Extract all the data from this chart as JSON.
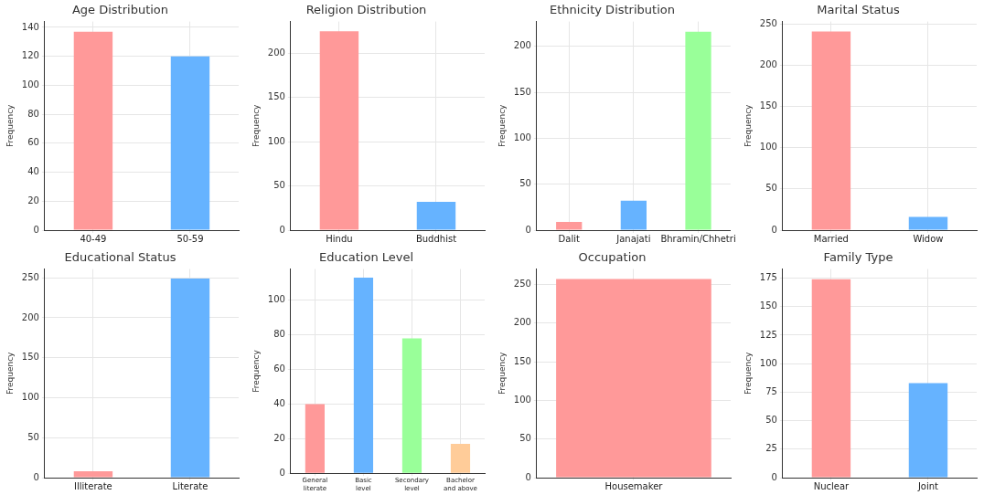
{
  "chart_data": [
    {
      "type": "bar",
      "title": "Age Distribution",
      "ylabel": "Frequency",
      "categories": [
        "40-49",
        "50-59"
      ],
      "values": [
        137,
        120
      ],
      "colors": [
        "#ff9999",
        "#66b3ff"
      ],
      "ylim": [
        0,
        144
      ],
      "yticks": [
        0,
        20,
        40,
        60,
        80,
        100,
        120,
        140
      ],
      "grid": true
    },
    {
      "type": "bar",
      "title": "Religion Distribution",
      "ylabel": "Frequency",
      "categories": [
        "Hindu",
        "Buddhist"
      ],
      "values": [
        225,
        32
      ],
      "colors": [
        "#ff9999",
        "#66b3ff"
      ],
      "ylim": [
        0,
        236
      ],
      "yticks": [
        0,
        50,
        100,
        150,
        200
      ],
      "grid": true
    },
    {
      "type": "bar",
      "title": "Ethnicity Distribution",
      "ylabel": "Frequency",
      "categories": [
        "Dalit",
        "Janajati",
        "Bhramin/Chhetri"
      ],
      "values": [
        9,
        32,
        216
      ],
      "colors": [
        "#ff9999",
        "#66b3ff",
        "#99ff99"
      ],
      "ylim": [
        0,
        227
      ],
      "yticks": [
        0,
        50,
        100,
        150,
        200
      ],
      "grid": true
    },
    {
      "type": "bar",
      "title": "Marital Status",
      "ylabel": "Frequency",
      "categories": [
        "Married",
        "Widow"
      ],
      "values": [
        241,
        16
      ],
      "colors": [
        "#ff9999",
        "#66b3ff"
      ],
      "ylim": [
        0,
        253
      ],
      "yticks": [
        0,
        50,
        100,
        150,
        200,
        250
      ],
      "grid": true
    },
    {
      "type": "bar",
      "title": "Educational Status",
      "ylabel": "Frequency",
      "categories": [
        "Illiterate",
        "Literate"
      ],
      "values": [
        8,
        249
      ],
      "colors": [
        "#ff9999",
        "#66b3ff"
      ],
      "ylim": [
        0,
        261
      ],
      "yticks": [
        0,
        50,
        100,
        150,
        200,
        250
      ],
      "grid": true
    },
    {
      "type": "bar",
      "title": "Education Level",
      "ylabel": "Frequency",
      "categories": [
        "General literate",
        "Basic level",
        "Secondary level",
        "Bachelor and above"
      ],
      "values": [
        40,
        113,
        78,
        17
      ],
      "colors": [
        "#ff9999",
        "#66b3ff",
        "#99ff99",
        "#ffcc99"
      ],
      "ylim": [
        0,
        118
      ],
      "yticks": [
        0,
        20,
        40,
        60,
        80,
        100
      ],
      "grid": true
    },
    {
      "type": "bar",
      "title": "Occupation",
      "ylabel": "Frequency",
      "categories": [
        "Housemaker"
      ],
      "values": [
        257
      ],
      "colors": [
        "#ff9999"
      ],
      "ylim": [
        0,
        270
      ],
      "yticks": [
        0,
        50,
        100,
        150,
        200,
        250
      ],
      "grid": true
    },
    {
      "type": "bar",
      "title": "Family Type",
      "ylabel": "Frequency",
      "categories": [
        "Nuclear",
        "Joint"
      ],
      "values": [
        174,
        83
      ],
      "colors": [
        "#ff9999",
        "#66b3ff"
      ],
      "ylim": [
        0,
        183
      ],
      "yticks": [
        0,
        25,
        50,
        75,
        100,
        125,
        150,
        175
      ],
      "grid": true
    }
  ]
}
